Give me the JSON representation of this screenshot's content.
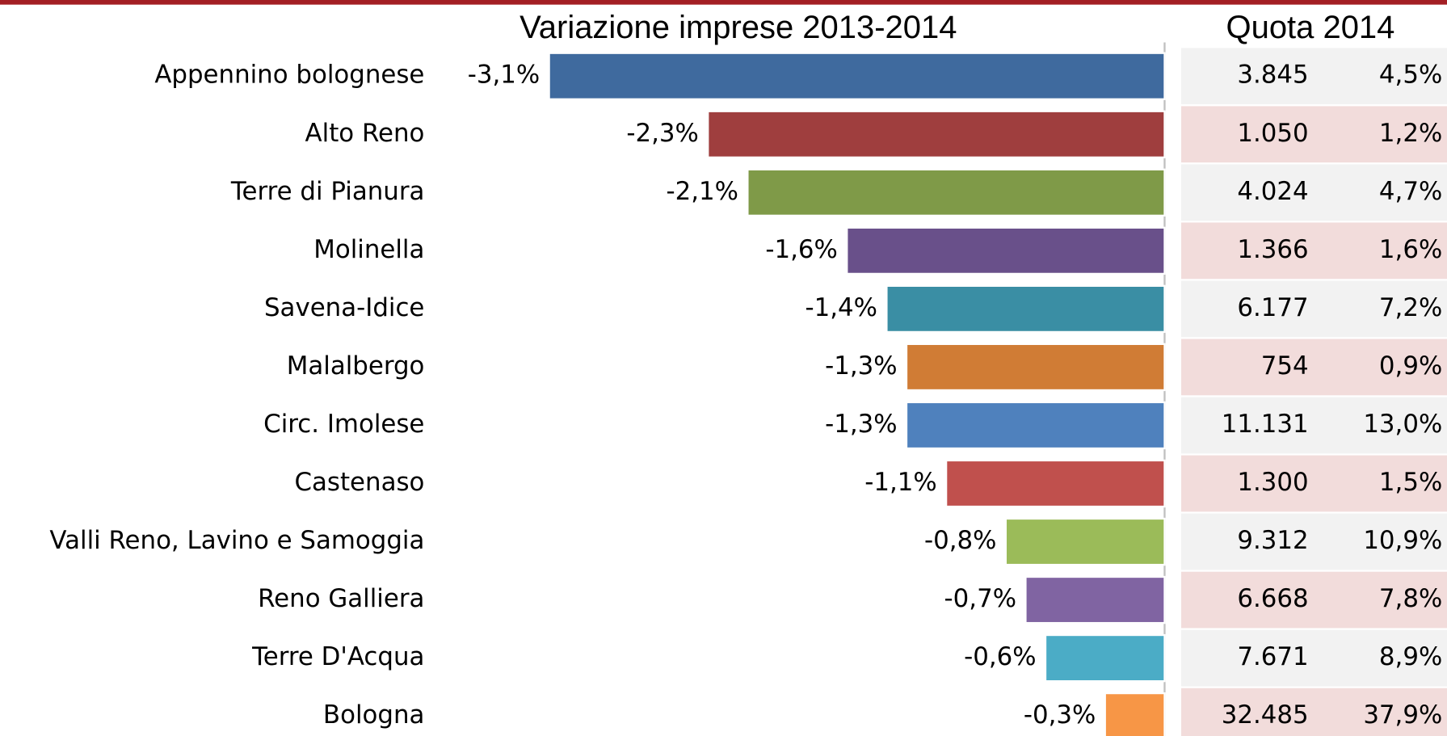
{
  "chart_data": {
    "type": "bar",
    "orientation": "horizontal",
    "title": "Variazione imprese 2013-2014",
    "categories": [
      "Appennino bolognese",
      "Alto Reno",
      "Terre di Pianura",
      "Molinella",
      "Savena-Idice",
      "Malalbergo",
      "Circ. Imolese",
      "Castenaso",
      "Valli Reno, Lavino e Samoggia",
      "Reno Galliera",
      "Terre D'Acqua",
      "Bologna"
    ],
    "values": [
      -3.1,
      -2.3,
      -2.1,
      -1.6,
      -1.4,
      -1.3,
      -1.3,
      -1.1,
      -0.8,
      -0.7,
      -0.6,
      -0.3
    ],
    "value_labels": [
      "-3,1%",
      "-2,3%",
      "-2,1%",
      "-1,6%",
      "-1,4%",
      "-1,3%",
      "-1,3%",
      "-1,1%",
      "-0,8%",
      "-0,7%",
      "-0,6%",
      "-0,3%"
    ],
    "colors": [
      "#3f6a9e",
      "#9f3e3e",
      "#7f9a48",
      "#69508a",
      "#3a8ea4",
      "#d07c35",
      "#4f81bd",
      "#c0504d",
      "#9bbb59",
      "#8064a2",
      "#4bacc6",
      "#f79646"
    ],
    "xlim": [
      -3.1,
      0
    ],
    "table": {
      "title": "Quota 2014",
      "rows": [
        [
          "3.845",
          "4,5%"
        ],
        [
          "1.050",
          "1,2%"
        ],
        [
          "4.024",
          "4,7%"
        ],
        [
          "1.366",
          "1,6%"
        ],
        [
          "6.177",
          "7,2%"
        ],
        [
          "754",
          "0,9%"
        ],
        [
          "11.131",
          "13,0%"
        ],
        [
          "1.300",
          "1,5%"
        ],
        [
          "9.312",
          "10,9%"
        ],
        [
          "6.668",
          "7,8%"
        ],
        [
          "7.671",
          "8,9%"
        ],
        [
          "32.485",
          "37,9%"
        ]
      ],
      "row_colors": [
        "#f2f2f2",
        "#f2dcdb"
      ]
    }
  }
}
